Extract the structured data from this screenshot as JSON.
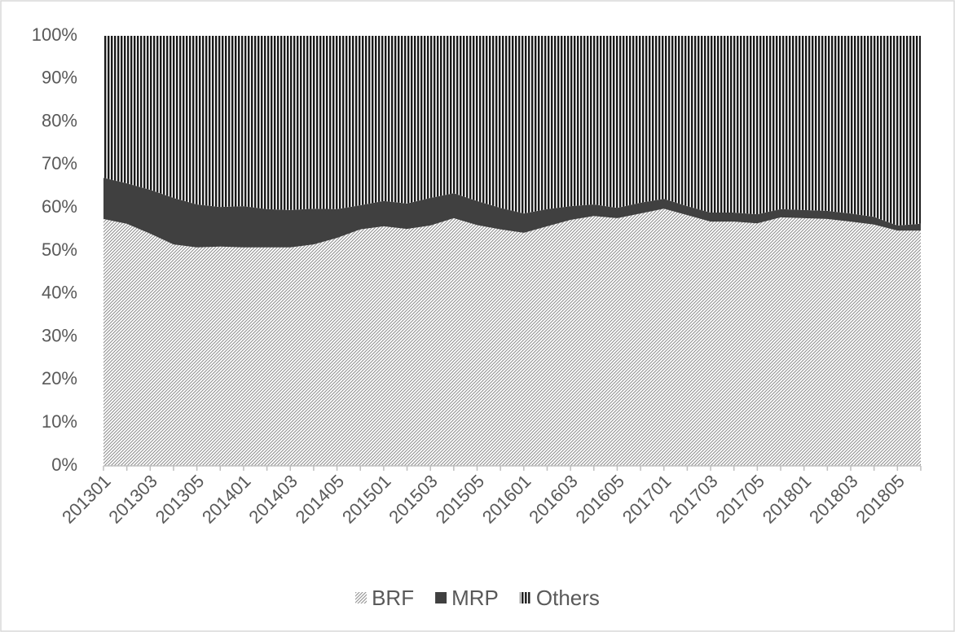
{
  "chart_data": {
    "type": "stacked_area_percent",
    "categories": [
      "201301",
      null,
      "201303",
      null,
      "201305",
      null,
      "201401",
      null,
      "201403",
      null,
      "201405",
      null,
      "201501",
      null,
      "201503",
      null,
      "201505",
      null,
      "201601",
      null,
      "201603",
      null,
      "201605",
      null,
      "201701",
      null,
      "201703",
      null,
      "201705",
      null,
      "201801",
      null,
      "201803",
      null,
      "201805",
      null
    ],
    "series": [
      {
        "name": "BRF",
        "color": "#8c8c8c",
        "pattern": "diagonal",
        "values": [
          57.4,
          56.3,
          54,
          51.5,
          50.8,
          51,
          50.8,
          50.8,
          50.8,
          51.5,
          53,
          55,
          55.7,
          55.1,
          55.9,
          57.6,
          56,
          55,
          54.2,
          55.7,
          57.2,
          58.1,
          57.6,
          58.7,
          59.8,
          58.3,
          56.8,
          56.8,
          56.4,
          57.8,
          57.6,
          57.4,
          56.8,
          56.1,
          54.7,
          54.7
        ]
      },
      {
        "name": "MRP",
        "color": "#404040",
        "pattern": "solid",
        "values": [
          9.6,
          9.4,
          10.2,
          10.8,
          10,
          9.2,
          9.6,
          8.9,
          8.7,
          8.3,
          6.7,
          5.6,
          5.9,
          5.9,
          6.4,
          5.8,
          5.6,
          5,
          4.5,
          4,
          3.2,
          2.7,
          2.4,
          2.5,
          2.3,
          2.1,
          2.1,
          2.1,
          2.1,
          1.9,
          1.9,
          1.9,
          1.9,
          1.8,
          1.2,
          1.6
        ]
      },
      {
        "name": "Others",
        "color": "#1a1a1a",
        "pattern": "vertical",
        "values": [
          33,
          34.3,
          35.8,
          37.7,
          39.2,
          39.8,
          39.6,
          40.3,
          40.5,
          40.2,
          40.3,
          39.4,
          38.4,
          39,
          37.7,
          36.6,
          38.4,
          40,
          41.3,
          40.3,
          39.6,
          39.2,
          40,
          38.8,
          37.9,
          39.6,
          41.1,
          41.1,
          41.5,
          40.3,
          40.5,
          40.7,
          41.3,
          42.1,
          44.1,
          43.7
        ]
      }
    ],
    "ylim": [
      0,
      100
    ],
    "yticks": [
      {
        "value": 0,
        "label": "0%"
      },
      {
        "value": 10,
        "label": "10%"
      },
      {
        "value": 20,
        "label": "20%"
      },
      {
        "value": 30,
        "label": "30%"
      },
      {
        "value": 40,
        "label": "40%"
      },
      {
        "value": 50,
        "label": "50%"
      },
      {
        "value": 60,
        "label": "60%"
      },
      {
        "value": 70,
        "label": "70%"
      },
      {
        "value": 80,
        "label": "80%"
      },
      {
        "value": 90,
        "label": "90%"
      },
      {
        "value": 100,
        "label": "100%"
      }
    ],
    "grid": false,
    "legend": "bottom"
  }
}
